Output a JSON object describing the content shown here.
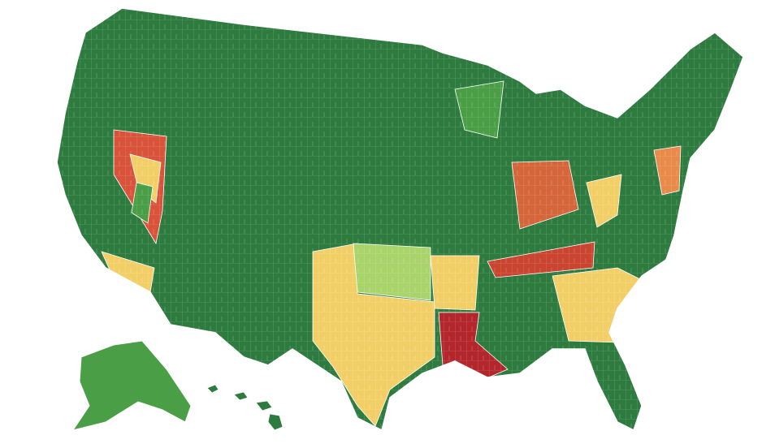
{
  "map": {
    "base_color": "#2e7b3f",
    "border_color": "#ffffff",
    "regions": [
      {
        "color": "#d9533a"
      },
      {
        "color": "#f2cf66"
      },
      {
        "color": "#4a9e45"
      },
      {
        "color": "#f2cf66"
      },
      {
        "color": "#a9d46b"
      },
      {
        "color": "#f2cf66"
      },
      {
        "color": "#b3262b"
      },
      {
        "color": "#f2cf66"
      },
      {
        "color": "#c9452f"
      },
      {
        "color": "#d5663a"
      },
      {
        "color": "#f2cf66"
      },
      {
        "color": "#f2cf66"
      },
      {
        "color": "#4a9e45"
      },
      {
        "color": "#e88a4a"
      }
    ],
    "alaska_color": "#4a9e45",
    "hawaii_color": "#2e7b3f"
  }
}
